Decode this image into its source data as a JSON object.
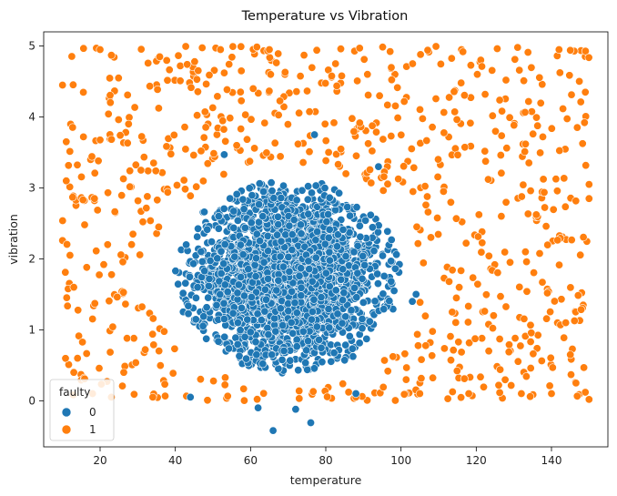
{
  "chart_data": {
    "type": "scatter",
    "title": "Temperature vs Vibration",
    "xlabel": "temperature",
    "ylabel": "vibration",
    "xlim": [
      5,
      155
    ],
    "ylim": [
      -0.65,
      5.2
    ],
    "xticks": [
      20,
      40,
      60,
      80,
      100,
      120,
      140
    ],
    "yticks": [
      0,
      1,
      2,
      3,
      4,
      5
    ],
    "grid": false,
    "legend": {
      "title": "faulty",
      "placement": "lower-left"
    },
    "series": [
      {
        "name": "0",
        "color": "#1f77b4",
        "cluster": {
          "center": [
            70,
            1.75
          ],
          "spread_x": 12,
          "spread_y": 0.6,
          "count": 2600,
          "x_range": [
            40,
            105
          ],
          "y_range": [
            -0.42,
            3.75
          ]
        },
        "points": [
          [
            53,
            3.47
          ],
          [
            77,
            3.75
          ],
          [
            94,
            3.3
          ],
          [
            66,
            -0.42
          ],
          [
            76,
            -0.31
          ],
          [
            62,
            -0.1
          ],
          [
            72,
            -0.12
          ],
          [
            88,
            0.1
          ],
          [
            44,
            0.05
          ],
          [
            103,
            1.4
          ],
          [
            104,
            1.5
          ]
        ]
      },
      {
        "name": "1",
        "color": "#ff7f0e",
        "fill": {
          "count": 700,
          "x_range": [
            10,
            150
          ],
          "y_range": [
            0.0,
            5.0
          ],
          "exclude_center": [
            70,
            1.75
          ],
          "exclude_radii": [
            36,
            1.6
          ]
        },
        "points": [
          [
            19,
            4.97
          ],
          [
            20,
            4.95
          ],
          [
            23,
            4.87
          ],
          [
            52,
            4.95
          ],
          [
            65,
            4.95
          ],
          [
            84,
            4.96
          ],
          [
            89,
            4.97
          ],
          [
            131,
            4.98
          ],
          [
            142,
            4.95
          ],
          [
            145,
            4.94
          ],
          [
            10,
            4.45
          ],
          [
            11,
            3.65
          ],
          [
            11,
            3.1
          ],
          [
            12,
            2.05
          ],
          [
            13,
            1.6
          ],
          [
            13,
            0.4
          ],
          [
            14,
            0.6
          ],
          [
            149,
            4.35
          ],
          [
            150,
            2.85
          ],
          [
            150,
            3.05
          ],
          [
            149,
            0.12
          ],
          [
            145,
            0.65
          ],
          [
            140,
            0.1
          ],
          [
            132,
            0.1
          ],
          [
            118,
            0.1
          ],
          [
            105,
            0.1
          ],
          [
            88,
            0.05
          ],
          [
            34,
            0.05
          ],
          [
            23,
            0.05
          ],
          [
            18,
            0.1
          ]
        ]
      }
    ]
  }
}
